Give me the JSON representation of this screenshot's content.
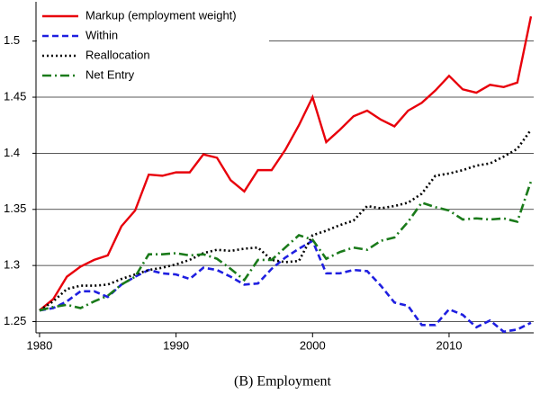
{
  "chart_data": {
    "type": "line",
    "caption": "(B) Employment",
    "x": [
      1980,
      1981,
      1982,
      1983,
      1984,
      1985,
      1986,
      1987,
      1988,
      1989,
      1990,
      1991,
      1992,
      1993,
      1994,
      1995,
      1996,
      1997,
      1998,
      1999,
      2000,
      2001,
      2002,
      2003,
      2004,
      2005,
      2006,
      2007,
      2008,
      2009,
      2010,
      2011,
      2012,
      2013,
      2014,
      2015,
      2016
    ],
    "series": [
      {
        "name": "Markup (employment weight)",
        "color": "#e8000b",
        "style": "solid",
        "values": [
          1.26,
          1.27,
          1.29,
          1.299,
          1.305,
          1.309,
          1.335,
          1.349,
          1.381,
          1.38,
          1.383,
          1.383,
          1.399,
          1.396,
          1.376,
          1.366,
          1.385,
          1.385,
          1.403,
          1.425,
          1.45,
          1.41,
          1.421,
          1.433,
          1.438,
          1.43,
          1.424,
          1.438,
          1.445,
          1.456,
          1.469,
          1.457,
          1.454,
          1.461,
          1.459,
          1.463,
          1.522
        ]
      },
      {
        "name": "Within",
        "color": "#1f1fe0",
        "style": "dashed",
        "values": [
          1.26,
          1.262,
          1.268,
          1.277,
          1.277,
          1.272,
          1.283,
          1.29,
          1.296,
          1.293,
          1.292,
          1.288,
          1.298,
          1.296,
          1.29,
          1.283,
          1.284,
          1.297,
          1.307,
          1.315,
          1.322,
          1.293,
          1.293,
          1.296,
          1.295,
          1.282,
          1.267,
          1.264,
          1.247,
          1.247,
          1.261,
          1.256,
          1.245,
          1.251,
          1.241,
          1.243,
          1.249
        ]
      },
      {
        "name": "Reallocation",
        "color": "#000000",
        "style": "dotted",
        "values": [
          1.26,
          1.268,
          1.279,
          1.282,
          1.282,
          1.283,
          1.288,
          1.292,
          1.296,
          1.298,
          1.301,
          1.305,
          1.311,
          1.314,
          1.313,
          1.315,
          1.316,
          1.305,
          1.303,
          1.304,
          1.327,
          1.331,
          1.336,
          1.34,
          1.353,
          1.351,
          1.353,
          1.356,
          1.364,
          1.38,
          1.382,
          1.385,
          1.389,
          1.391,
          1.397,
          1.404,
          1.421
        ]
      },
      {
        "name": "Net Entry",
        "color": "#1a7a1a",
        "style": "dashdot",
        "values": [
          1.26,
          1.263,
          1.265,
          1.262,
          1.268,
          1.273,
          1.283,
          1.29,
          1.31,
          1.31,
          1.311,
          1.309,
          1.31,
          1.306,
          1.297,
          1.287,
          1.305,
          1.305,
          1.316,
          1.327,
          1.323,
          1.306,
          1.312,
          1.316,
          1.314,
          1.322,
          1.325,
          1.339,
          1.356,
          1.352,
          1.349,
          1.341,
          1.342,
          1.341,
          1.342,
          1.339,
          1.375
        ]
      }
    ],
    "xlim": [
      1979.74,
      2016.2
    ],
    "xticks": [
      1980,
      1990,
      2000,
      2010
    ],
    "ylim": [
      1.24,
      1.535
    ],
    "yticks": [
      {
        "value": 1.25,
        "label": "1.25"
      },
      {
        "value": 1.3,
        "label": "1.3"
      },
      {
        "value": 1.35,
        "label": "1.35"
      },
      {
        "value": 1.4,
        "label": "1.4"
      },
      {
        "value": 1.45,
        "label": "1.45"
      },
      {
        "value": 1.5,
        "label": "1.5"
      }
    ],
    "grid": true,
    "legend": "upper left"
  }
}
